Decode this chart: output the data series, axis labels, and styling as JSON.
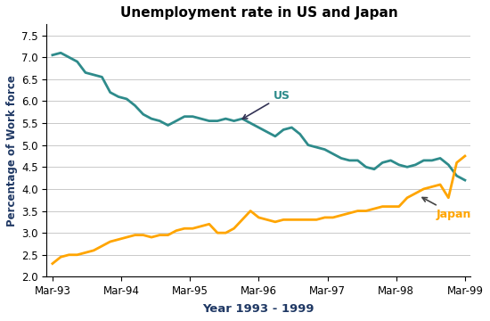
{
  "title": "Unemployment rate in US and Japan",
  "xlabel": "Year 1993 - 1999",
  "ylabel": "Percentage of Work force",
  "ylim": [
    2.0,
    7.75
  ],
  "yticks": [
    2.0,
    2.5,
    3.0,
    3.5,
    4.0,
    4.5,
    5.0,
    5.5,
    6.0,
    6.5,
    7.0,
    7.5
  ],
  "xtick_labels": [
    "Mar-93",
    "Mar-94",
    "Mar-95",
    "Mar-96",
    "Mar-97",
    "Mar-98",
    "Mar-99"
  ],
  "us_color": "#2E8B8B",
  "japan_color": "#FFA500",
  "label_color": "#1F3864",
  "us_data": [
    7.05,
    7.1,
    7.0,
    6.9,
    6.65,
    6.6,
    6.55,
    6.2,
    6.1,
    6.05,
    5.9,
    5.7,
    5.6,
    5.55,
    5.45,
    5.55,
    5.65,
    5.65,
    5.6,
    5.55,
    5.55,
    5.6,
    5.55,
    5.6,
    5.5,
    5.4,
    5.3,
    5.2,
    5.35,
    5.4,
    5.25,
    5.0,
    4.95,
    4.9,
    4.8,
    4.7,
    4.65,
    4.65,
    4.5,
    4.45,
    4.6,
    4.65,
    4.55,
    4.5,
    4.55,
    4.65,
    4.65,
    4.7,
    4.55,
    4.3,
    4.2
  ],
  "japan_data": [
    2.3,
    2.45,
    2.5,
    2.5,
    2.55,
    2.6,
    2.7,
    2.8,
    2.85,
    2.9,
    2.95,
    2.95,
    2.9,
    2.95,
    2.95,
    3.05,
    3.1,
    3.1,
    3.15,
    3.2,
    3.0,
    3.0,
    3.1,
    3.3,
    3.5,
    3.35,
    3.3,
    3.25,
    3.3,
    3.3,
    3.3,
    3.3,
    3.3,
    3.35,
    3.35,
    3.4,
    3.45,
    3.5,
    3.5,
    3.55,
    3.6,
    3.6,
    3.6,
    3.8,
    3.9,
    4.0,
    4.05,
    4.1,
    3.8,
    4.6,
    4.75
  ],
  "us_label": "US",
  "japan_label": "Japan"
}
